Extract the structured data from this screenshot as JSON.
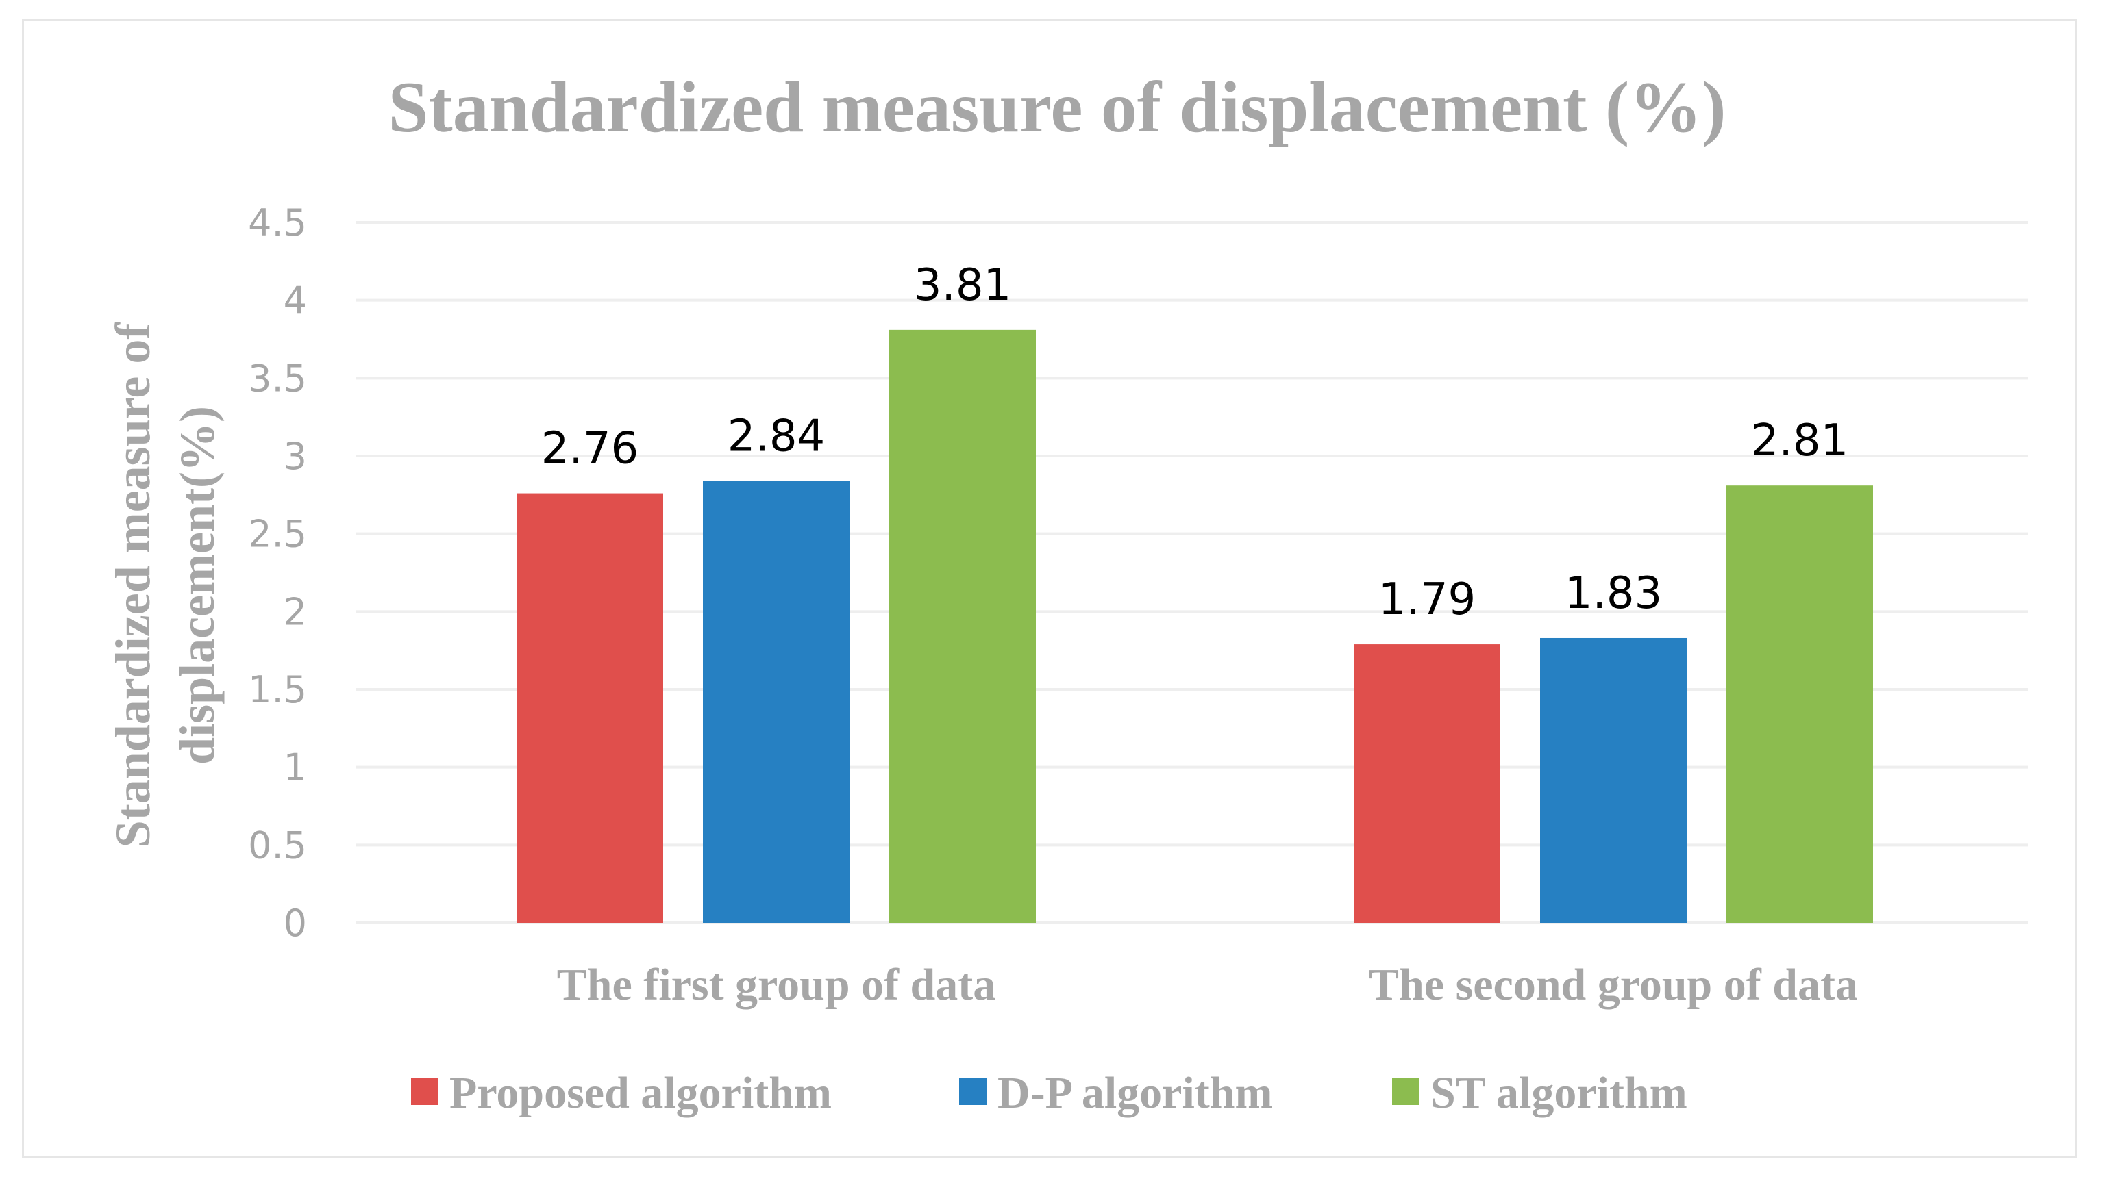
{
  "chart_data": {
    "type": "bar",
    "title": "Standardized measure of displacement (%)",
    "ylabel_lines": [
      "Standardized measure of",
      "displacement(%)"
    ],
    "xlabel": "",
    "ylim": [
      0,
      4.5
    ],
    "yticks": [
      "0",
      "0.5",
      "1",
      "1.5",
      "2",
      "2.5",
      "3",
      "3.5",
      "4",
      "4.5"
    ],
    "categories": [
      "The first group of data",
      "The second group of data"
    ],
    "series": [
      {
        "name": "Proposed algorithm",
        "color": "#e04f4c",
        "values": [
          2.76,
          1.79
        ],
        "labels": [
          "2.76",
          "1.79"
        ]
      },
      {
        "name": "D-P algorithm",
        "color": "#2680c2",
        "values": [
          2.84,
          1.83
        ],
        "labels": [
          "2.84",
          "1.83"
        ]
      },
      {
        "name": "ST algorithm",
        "color": "#8cbc4f",
        "values": [
          3.81,
          2.81
        ],
        "labels": [
          "3.81",
          "2.81"
        ]
      }
    ],
    "grid": true,
    "legend": "bottom"
  }
}
